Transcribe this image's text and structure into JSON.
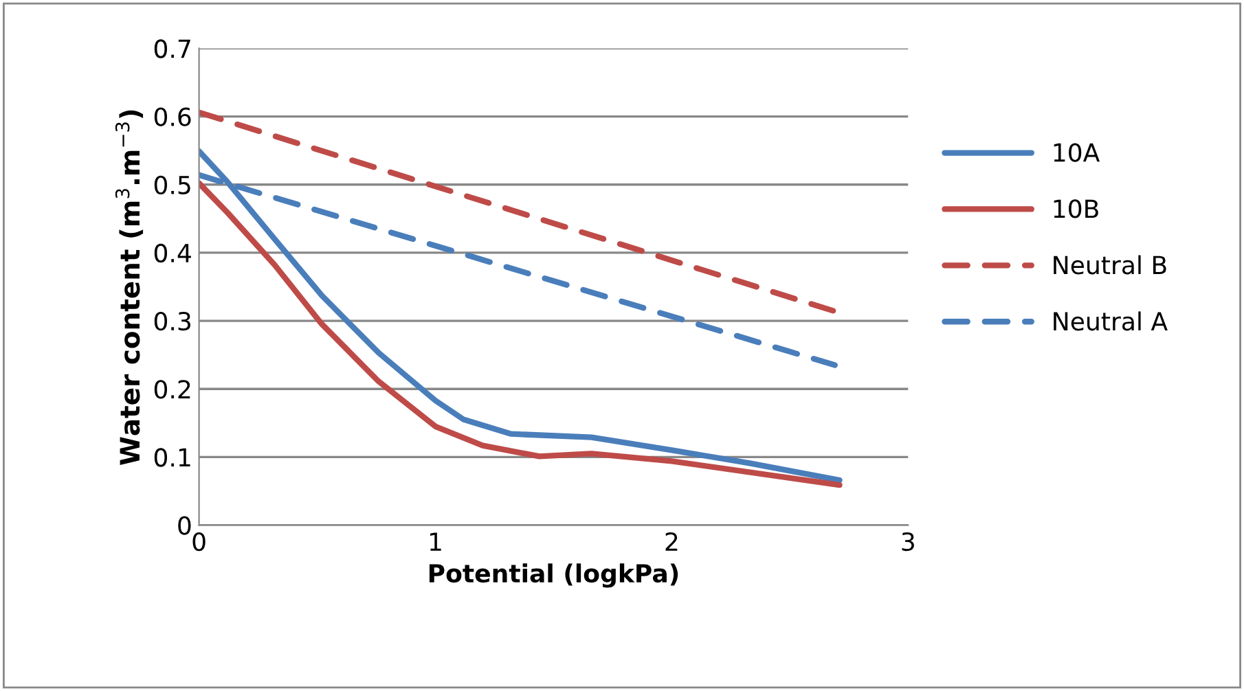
{
  "chart_data": {
    "type": "line",
    "xlabel": "Potential (logkPa)",
    "ylabel": "Water content (m$^{3}$.m$^{−3}$)",
    "xlim": [
      0,
      3
    ],
    "xticks": [
      0,
      1,
      2,
      3
    ],
    "ylim": [
      0,
      0.7
    ],
    "yticks": [
      0,
      0.1,
      0.2,
      0.3,
      0.4,
      0.5,
      0.6,
      0.7
    ],
    "grid": "y",
    "legend": "right",
    "marker": "none",
    "series": [
      {
        "name": "10A",
        "color": "#4a7ebb",
        "line_style": "solid",
        "x": [
          0,
          0.12,
          0.32,
          0.52,
          0.76,
          1.0,
          1.12,
          1.32,
          1.66,
          2.0,
          2.33,
          2.71
        ],
        "values": [
          0.549,
          0.504,
          0.42,
          0.337,
          0.253,
          0.183,
          0.155,
          0.134,
          0.129,
          0.11,
          0.091,
          0.066
        ]
      },
      {
        "name": "10B",
        "color": "#be4b48",
        "line_style": "solid",
        "x": [
          0,
          0.12,
          0.32,
          0.52,
          0.76,
          1.0,
          1.2,
          1.44,
          1.66,
          2.0,
          2.71
        ],
        "values": [
          0.502,
          0.459,
          0.382,
          0.295,
          0.211,
          0.145,
          0.117,
          0.101,
          0.105,
          0.094,
          0.059
        ]
      },
      {
        "name": "Neutral B",
        "color": "#be4b48",
        "line_style": "dashed",
        "x": [
          0,
          2.69
        ],
        "values": [
          0.606,
          0.314
        ]
      },
      {
        "name": "Neutral A",
        "color": "#4a7ebb",
        "line_style": "dashed",
        "x": [
          0,
          2.69
        ],
        "values": [
          0.514,
          0.235
        ]
      }
    ]
  }
}
